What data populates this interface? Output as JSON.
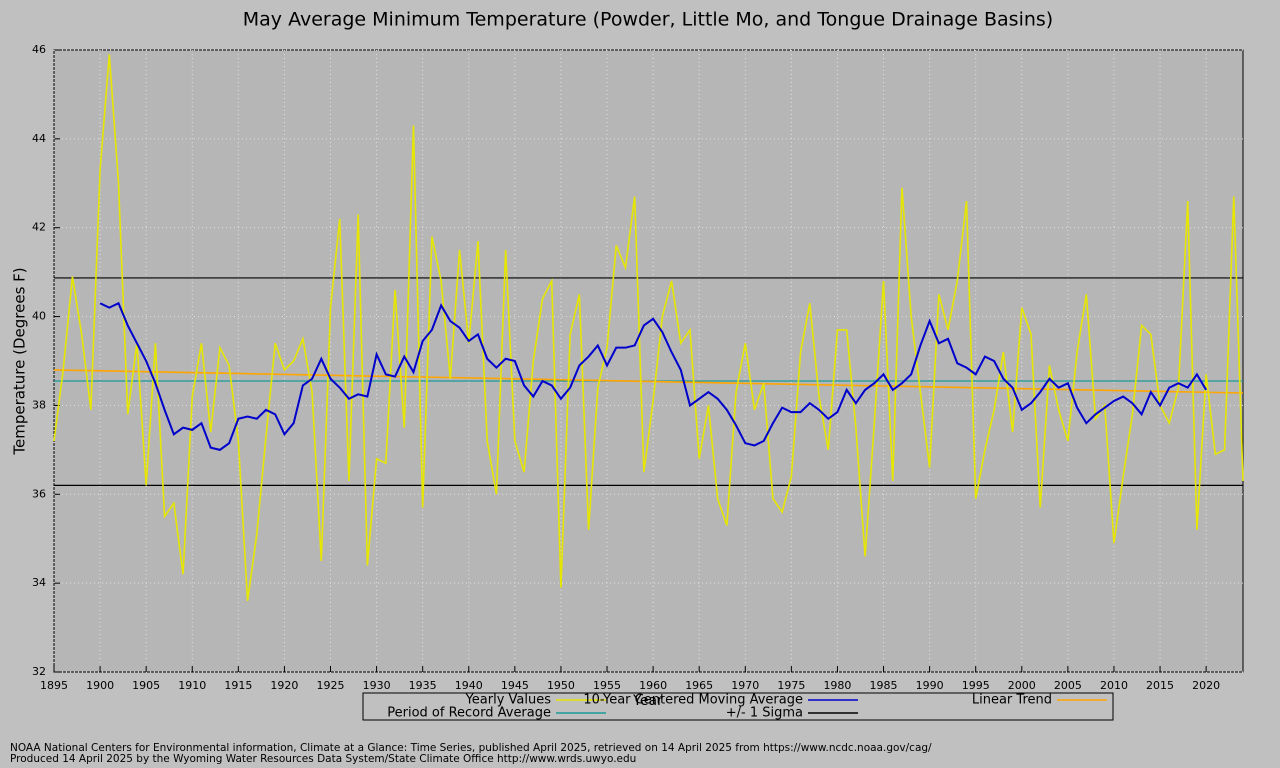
{
  "chart_data": {
    "type": "line",
    "title": "May Average Minimum Temperature (Powder, Little Mo, and Tongue Drainage Basins)",
    "x_label": "Year",
    "y_label": "Temperature (Degrees F)",
    "footer": [
      "NOAA National Centers for Environmental information, Climate at a Glance: Time Series, published April 2025, retrieved on 14 April 2025 from https://www.ncdc.noaa.gov/cag/",
      "Produced 14 April 2025 by the Wyoming Water Resources Data System/State Climate Office http://www.wrds.uwyo.edu"
    ],
    "xlim": [
      1895,
      2024
    ],
    "xticks": [
      1895,
      1900,
      1905,
      1910,
      1915,
      1920,
      1925,
      1930,
      1935,
      1940,
      1945,
      1950,
      1955,
      1960,
      1965,
      1970,
      1975,
      1980,
      1985,
      1990,
      1995,
      2000,
      2005,
      2010,
      2015,
      2020
    ],
    "ylim": [
      32,
      46
    ],
    "yticks": [
      32,
      34,
      36,
      38,
      40,
      42,
      44,
      46
    ],
    "grid": true,
    "x": [
      1895,
      1896,
      1897,
      1898,
      1899,
      1900,
      1901,
      1902,
      1903,
      1904,
      1905,
      1906,
      1907,
      1908,
      1909,
      1910,
      1911,
      1912,
      1913,
      1914,
      1915,
      1916,
      1917,
      1918,
      1919,
      1920,
      1921,
      1922,
      1923,
      1924,
      1925,
      1926,
      1927,
      1928,
      1929,
      1930,
      1931,
      1932,
      1933,
      1934,
      1935,
      1936,
      1937,
      1938,
      1939,
      1940,
      1941,
      1942,
      1943,
      1944,
      1945,
      1946,
      1947,
      1948,
      1949,
      1950,
      1951,
      1952,
      1953,
      1954,
      1955,
      1956,
      1957,
      1958,
      1959,
      1960,
      1961,
      1962,
      1963,
      1964,
      1965,
      1966,
      1967,
      1968,
      1969,
      1970,
      1971,
      1972,
      1973,
      1974,
      1975,
      1976,
      1977,
      1978,
      1979,
      1980,
      1981,
      1982,
      1983,
      1984,
      1985,
      1986,
      1987,
      1988,
      1989,
      1990,
      1991,
      1992,
      1993,
      1994,
      1995,
      1996,
      1997,
      1998,
      1999,
      2000,
      2001,
      2002,
      2003,
      2004,
      2005,
      2006,
      2007,
      2008,
      2009,
      2010,
      2011,
      2012,
      2013,
      2014,
      2015,
      2016,
      2017,
      2018,
      2019,
      2020,
      2021,
      2022,
      2023,
      2024
    ],
    "series": [
      {
        "name": "Yearly Values",
        "color": "#e6e600",
        "values": [
          37.2,
          38.8,
          40.9,
          39.6,
          37.9,
          43.3,
          45.9,
          43.0,
          37.8,
          39.4,
          36.2,
          39.4,
          35.5,
          35.8,
          34.2,
          38.2,
          39.4,
          37.4,
          39.3,
          38.9,
          37.2,
          33.6,
          35.1,
          37.3,
          39.4,
          38.8,
          39.0,
          39.5,
          38.3,
          34.5,
          40.2,
          42.2,
          36.3,
          42.3,
          34.4,
          36.8,
          36.7,
          40.6,
          37.5,
          44.3,
          35.7,
          41.8,
          40.8,
          38.6,
          41.5,
          39.4,
          41.7,
          37.2,
          36.0,
          41.5,
          37.2,
          36.5,
          39.0,
          40.4,
          40.8,
          33.9,
          39.6,
          40.5,
          35.2,
          38.4,
          39.3,
          41.6,
          41.1,
          42.7,
          36.5,
          38.1,
          40.0,
          40.8,
          39.4,
          39.7,
          36.8,
          38.0,
          35.9,
          35.3,
          38.3,
          39.4,
          37.9,
          38.5,
          35.9,
          35.6,
          36.4,
          39.2,
          40.3,
          38.2,
          37.0,
          39.7,
          39.7,
          37.5,
          34.6,
          37.6,
          40.8,
          36.3,
          42.9,
          40.0,
          38.3,
          36.6,
          40.5,
          39.7,
          40.8,
          42.6,
          35.9,
          37.0,
          37.9,
          39.2,
          37.4,
          40.2,
          39.6,
          35.7,
          38.9,
          37.9,
          37.2,
          39.2,
          40.5,
          37.7,
          38.0,
          34.9,
          36.4,
          37.8,
          39.8,
          39.6,
          38.0,
          37.6,
          38.4,
          42.6,
          35.2,
          38.7,
          36.9,
          37.0,
          42.7,
          36.3
        ]
      },
      {
        "name": "10-Year Centered Moving Average",
        "color": "#0000cc",
        "values": [
          null,
          null,
          null,
          null,
          null,
          40.3,
          40.2,
          40.3,
          39.8,
          39.4,
          39.0,
          38.5,
          37.9,
          37.35,
          37.5,
          37.45,
          37.6,
          37.05,
          37.0,
          37.15,
          37.7,
          37.75,
          37.7,
          37.9,
          37.8,
          37.35,
          37.6,
          38.45,
          38.6,
          39.05,
          38.6,
          38.4,
          38.15,
          38.25,
          38.2,
          39.15,
          38.7,
          38.65,
          39.1,
          38.75,
          39.45,
          39.7,
          40.25,
          39.9,
          39.75,
          39.45,
          39.6,
          39.05,
          38.85,
          39.05,
          39.0,
          38.45,
          38.2,
          38.55,
          38.45,
          38.15,
          38.4,
          38.9,
          39.1,
          39.35,
          38.9,
          39.3,
          39.3,
          39.35,
          39.8,
          39.95,
          39.65,
          39.2,
          38.8,
          38.0,
          38.15,
          38.3,
          38.15,
          37.9,
          37.55,
          37.15,
          37.1,
          37.2,
          37.6,
          37.95,
          37.85,
          37.85,
          38.05,
          37.9,
          37.7,
          37.85,
          38.35,
          38.05,
          38.35,
          38.5,
          38.7,
          38.35,
          38.5,
          38.7,
          39.35,
          39.9,
          39.4,
          39.5,
          38.95,
          38.85,
          38.7,
          39.1,
          39.0,
          38.6,
          38.4,
          37.9,
          38.05,
          38.3,
          38.6,
          38.4,
          38.5,
          37.95,
          37.6,
          37.8,
          37.95,
          38.1,
          38.2,
          38.05,
          37.8,
          38.3,
          38.0,
          38.4,
          38.5,
          38.4,
          38.7,
          38.35,
          null,
          null,
          null,
          null
        ]
      },
      {
        "name": "Linear Trend",
        "color": "#ffa500",
        "x": [
          1895,
          2024
        ],
        "values": [
          38.8,
          38.28
        ]
      },
      {
        "name": "Period of Record Average",
        "color": "#1a9a9a",
        "levels": [
          38.55
        ]
      },
      {
        "name": "+/- 1 Sigma",
        "color": "#000000",
        "levels": [
          36.2,
          40.87
        ]
      }
    ]
  }
}
